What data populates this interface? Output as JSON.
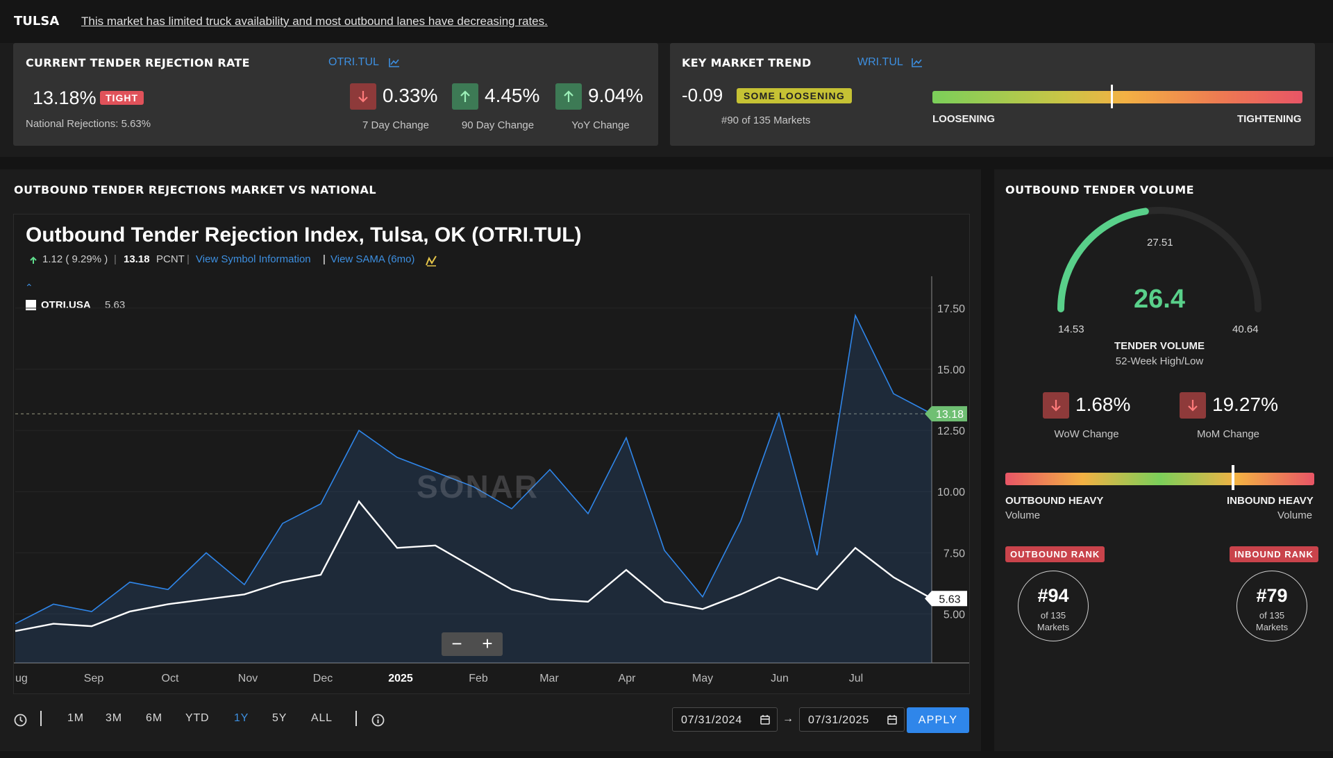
{
  "header": {
    "city": "TULSA",
    "message": "This market has limited truck availability and most outbound lanes have decreasing rates."
  },
  "rejection_card": {
    "title": "CURRENT TENDER REJECTION RATE",
    "symbol": "OTRI.TUL",
    "value": "13.18%",
    "badge": "TIGHT",
    "national": "National Rejections: 5.63%",
    "changes": [
      {
        "value": "0.33%",
        "label": "7 Day Change",
        "direction": "down"
      },
      {
        "value": "4.45%",
        "label": "90 Day Change",
        "direction": "up"
      },
      {
        "value": "9.04%",
        "label": "YoY Change",
        "direction": "up"
      }
    ]
  },
  "trend_card": {
    "title": "KEY MARKET TREND",
    "symbol": "WRI.TUL",
    "value": "-0.09",
    "badge": "SOME LOOSENING",
    "rank": "#90 of 135 Markets",
    "left_label": "LOOSENING",
    "right_label": "TIGHTENING"
  },
  "main_section": {
    "title": "OUTBOUND TENDER REJECTIONS MARKET VS NATIONAL",
    "chart_title": "Outbound Tender Rejection Index, Tulsa, OK (OTRI.TUL)",
    "change_text": "1.12 ( 9.29% )",
    "current_text": "13.18",
    "unit": "PCNT",
    "link_symbol": "View Symbol Information",
    "link_sama": "View SAMA (6mo)",
    "legend_name": "OTRI.USA",
    "legend_value": "5.63",
    "watermark": "SONAR",
    "zoom_out": "−",
    "zoom_in": "+",
    "range_buttons": [
      "1M",
      "3M",
      "6M",
      "YTD",
      "1Y",
      "5Y",
      "ALL"
    ],
    "active_range": "1Y",
    "start_date": "07/31/2024",
    "end_date": "07/31/2025",
    "arrow": "→",
    "apply": "APPLY"
  },
  "chart_data": {
    "type": "line",
    "x_labels": [
      "ug",
      "Sep",
      "Oct",
      "Nov",
      "Dec",
      "2025",
      "Feb",
      "Mar",
      "Apr",
      "May",
      "Jun",
      "Jul"
    ],
    "y_ticks": [
      "17.50",
      "15.00",
      "12.50",
      "10.00",
      "7.50",
      "5.00"
    ],
    "ylim": [
      3.0,
      18.8
    ],
    "x": [
      "2024-08-01",
      "2024-08-15",
      "2024-09-01",
      "2024-09-15",
      "2024-10-01",
      "2024-10-15",
      "2024-11-01",
      "2024-11-15",
      "2024-12-01",
      "2024-12-15",
      "2025-01-01",
      "2025-01-15",
      "2025-02-01",
      "2025-02-15",
      "2025-03-01",
      "2025-03-15",
      "2025-04-01",
      "2025-04-15",
      "2025-05-01",
      "2025-05-15",
      "2025-06-01",
      "2025-06-15",
      "2025-07-01",
      "2025-07-15",
      "2025-07-31"
    ],
    "series": [
      {
        "name": "OTRI.TUL",
        "color": "#2f86ea",
        "last_label": "13.18",
        "values": [
          4.6,
          5.4,
          5.1,
          6.3,
          6.0,
          7.5,
          6.2,
          8.7,
          9.5,
          12.5,
          11.4,
          10.8,
          10.2,
          9.3,
          10.9,
          9.1,
          12.2,
          7.6,
          5.7,
          8.8,
          13.2,
          7.4,
          17.2,
          14.0,
          13.18
        ]
      },
      {
        "name": "OTRI.USA",
        "color": "#ffffff",
        "last_label": "5.63",
        "values": [
          4.3,
          4.6,
          4.5,
          5.1,
          5.4,
          5.6,
          5.8,
          6.3,
          6.6,
          9.6,
          7.7,
          7.8,
          6.9,
          6.0,
          5.6,
          5.5,
          6.8,
          5.5,
          5.2,
          5.8,
          6.5,
          6.0,
          7.7,
          6.5,
          5.63
        ]
      }
    ],
    "reference_value": 13.18,
    "legend_position": "top-left"
  },
  "volume": {
    "title": "OUTBOUND TENDER VOLUME",
    "value": "26.4",
    "value_num": 26.4,
    "low": "14.53",
    "low_num": 14.53,
    "high": "40.64",
    "high_num": 40.64,
    "mid": "27.51",
    "label": "TENDER VOLUME",
    "sublabel": "52-Week High/Low",
    "wow_value": "1.68%",
    "wow_label": "WoW Change",
    "mom_value": "19.27%",
    "mom_label": "MoM Change",
    "left_label": "OUTBOUND HEAVY",
    "left_sub": "Volume",
    "right_label": "INBOUND HEAVY",
    "right_sub": "Volume",
    "outbound_rank_title": "OUTBOUND RANK",
    "outbound_rank": "#94",
    "inbound_rank_title": "INBOUND RANK",
    "inbound_rank": "#79",
    "rank_of": "of 135",
    "rank_markets": "Markets"
  },
  "colors": {
    "accent_blue": "#2f86ea",
    "tight_red": "#e0525a",
    "gauge_green": "#59d08a",
    "badge_yellow": "#c6c234"
  }
}
